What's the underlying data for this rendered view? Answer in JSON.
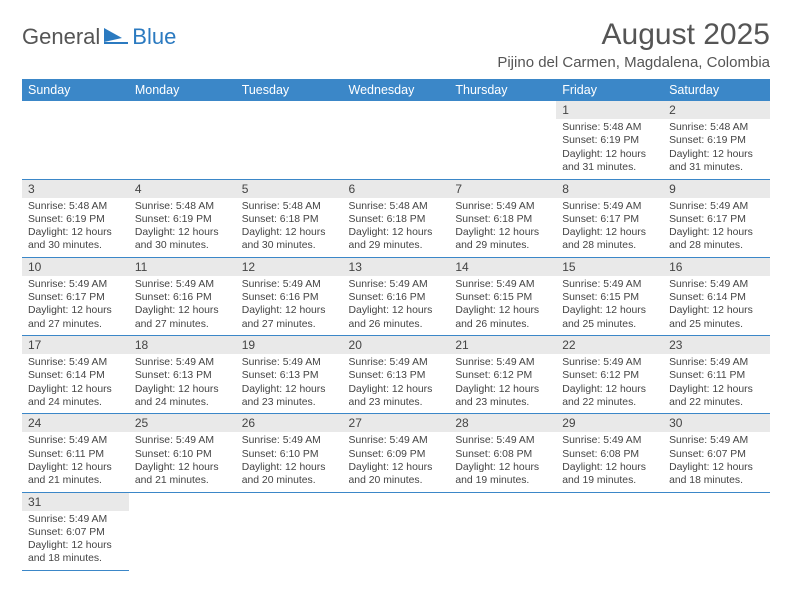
{
  "logo": {
    "text1": "General",
    "text2": "Blue"
  },
  "title": "August 2025",
  "subtitle": "Pijino del Carmen, Magdalena, Colombia",
  "colors": {
    "header_bg": "#3b87c8",
    "header_text": "#ffffff",
    "daynum_bg": "#e9e9e9",
    "rule": "#3b87c8",
    "title_color": "#555555",
    "body_text": "#444444"
  },
  "weekdays": [
    "Sunday",
    "Monday",
    "Tuesday",
    "Wednesday",
    "Thursday",
    "Friday",
    "Saturday"
  ],
  "weeks": [
    [
      null,
      null,
      null,
      null,
      null,
      {
        "n": "1",
        "sr": "5:48 AM",
        "ss": "6:19 PM",
        "dl": "12 hours and 31 minutes."
      },
      {
        "n": "2",
        "sr": "5:48 AM",
        "ss": "6:19 PM",
        "dl": "12 hours and 31 minutes."
      }
    ],
    [
      {
        "n": "3",
        "sr": "5:48 AM",
        "ss": "6:19 PM",
        "dl": "12 hours and 30 minutes."
      },
      {
        "n": "4",
        "sr": "5:48 AM",
        "ss": "6:19 PM",
        "dl": "12 hours and 30 minutes."
      },
      {
        "n": "5",
        "sr": "5:48 AM",
        "ss": "6:18 PM",
        "dl": "12 hours and 30 minutes."
      },
      {
        "n": "6",
        "sr": "5:48 AM",
        "ss": "6:18 PM",
        "dl": "12 hours and 29 minutes."
      },
      {
        "n": "7",
        "sr": "5:49 AM",
        "ss": "6:18 PM",
        "dl": "12 hours and 29 minutes."
      },
      {
        "n": "8",
        "sr": "5:49 AM",
        "ss": "6:17 PM",
        "dl": "12 hours and 28 minutes."
      },
      {
        "n": "9",
        "sr": "5:49 AM",
        "ss": "6:17 PM",
        "dl": "12 hours and 28 minutes."
      }
    ],
    [
      {
        "n": "10",
        "sr": "5:49 AM",
        "ss": "6:17 PM",
        "dl": "12 hours and 27 minutes."
      },
      {
        "n": "11",
        "sr": "5:49 AM",
        "ss": "6:16 PM",
        "dl": "12 hours and 27 minutes."
      },
      {
        "n": "12",
        "sr": "5:49 AM",
        "ss": "6:16 PM",
        "dl": "12 hours and 27 minutes."
      },
      {
        "n": "13",
        "sr": "5:49 AM",
        "ss": "6:16 PM",
        "dl": "12 hours and 26 minutes."
      },
      {
        "n": "14",
        "sr": "5:49 AM",
        "ss": "6:15 PM",
        "dl": "12 hours and 26 minutes."
      },
      {
        "n": "15",
        "sr": "5:49 AM",
        "ss": "6:15 PM",
        "dl": "12 hours and 25 minutes."
      },
      {
        "n": "16",
        "sr": "5:49 AM",
        "ss": "6:14 PM",
        "dl": "12 hours and 25 minutes."
      }
    ],
    [
      {
        "n": "17",
        "sr": "5:49 AM",
        "ss": "6:14 PM",
        "dl": "12 hours and 24 minutes."
      },
      {
        "n": "18",
        "sr": "5:49 AM",
        "ss": "6:13 PM",
        "dl": "12 hours and 24 minutes."
      },
      {
        "n": "19",
        "sr": "5:49 AM",
        "ss": "6:13 PM",
        "dl": "12 hours and 23 minutes."
      },
      {
        "n": "20",
        "sr": "5:49 AM",
        "ss": "6:13 PM",
        "dl": "12 hours and 23 minutes."
      },
      {
        "n": "21",
        "sr": "5:49 AM",
        "ss": "6:12 PM",
        "dl": "12 hours and 23 minutes."
      },
      {
        "n": "22",
        "sr": "5:49 AM",
        "ss": "6:12 PM",
        "dl": "12 hours and 22 minutes."
      },
      {
        "n": "23",
        "sr": "5:49 AM",
        "ss": "6:11 PM",
        "dl": "12 hours and 22 minutes."
      }
    ],
    [
      {
        "n": "24",
        "sr": "5:49 AM",
        "ss": "6:11 PM",
        "dl": "12 hours and 21 minutes."
      },
      {
        "n": "25",
        "sr": "5:49 AM",
        "ss": "6:10 PM",
        "dl": "12 hours and 21 minutes."
      },
      {
        "n": "26",
        "sr": "5:49 AM",
        "ss": "6:10 PM",
        "dl": "12 hours and 20 minutes."
      },
      {
        "n": "27",
        "sr": "5:49 AM",
        "ss": "6:09 PM",
        "dl": "12 hours and 20 minutes."
      },
      {
        "n": "28",
        "sr": "5:49 AM",
        "ss": "6:08 PM",
        "dl": "12 hours and 19 minutes."
      },
      {
        "n": "29",
        "sr": "5:49 AM",
        "ss": "6:08 PM",
        "dl": "12 hours and 19 minutes."
      },
      {
        "n": "30",
        "sr": "5:49 AM",
        "ss": "6:07 PM",
        "dl": "12 hours and 18 minutes."
      }
    ],
    [
      {
        "n": "31",
        "sr": "5:49 AM",
        "ss": "6:07 PM",
        "dl": "12 hours and 18 minutes."
      },
      null,
      null,
      null,
      null,
      null,
      null
    ]
  ],
  "labels": {
    "sunrise": "Sunrise:",
    "sunset": "Sunset:",
    "daylight": "Daylight:"
  }
}
